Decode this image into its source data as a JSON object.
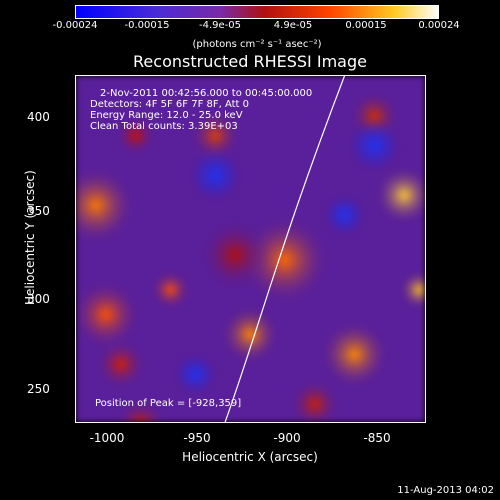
{
  "colorbar": {
    "ticks": [
      "-0.00024",
      "-0.00015",
      "-4.9e-05",
      "4.9e-05",
      "0.00015",
      "0.00024"
    ],
    "unit": "(photons cm⁻² s⁻¹ asec⁻²)",
    "colors": [
      "#0000ff",
      "#6633cc",
      "#cc0000",
      "#ff6600",
      "#ffffff"
    ]
  },
  "title": "Reconstructed RHESSI Image",
  "info": {
    "time": "2-Nov-2011 00:42:56.000 to 00:45:00.000",
    "detectors": "Detectors: 4F 5F 6F 7F 8F, Att 0",
    "energy": "Energy Range: 12.0 - 25.0 keV",
    "clean": "Clean      Total counts: 3.39E+03",
    "peak": "Position of Peak = [-928,359]"
  },
  "axes": {
    "xlabel": "Heliocentric X (arcsec)",
    "ylabel": "Heliocentric Y (arcsec)",
    "xticks": [
      "-1000",
      "-950",
      "-900",
      "-850"
    ],
    "yticks": [
      "400",
      "350",
      "300",
      "250"
    ]
  },
  "timestamp": "11-Aug-2013 04:02"
}
